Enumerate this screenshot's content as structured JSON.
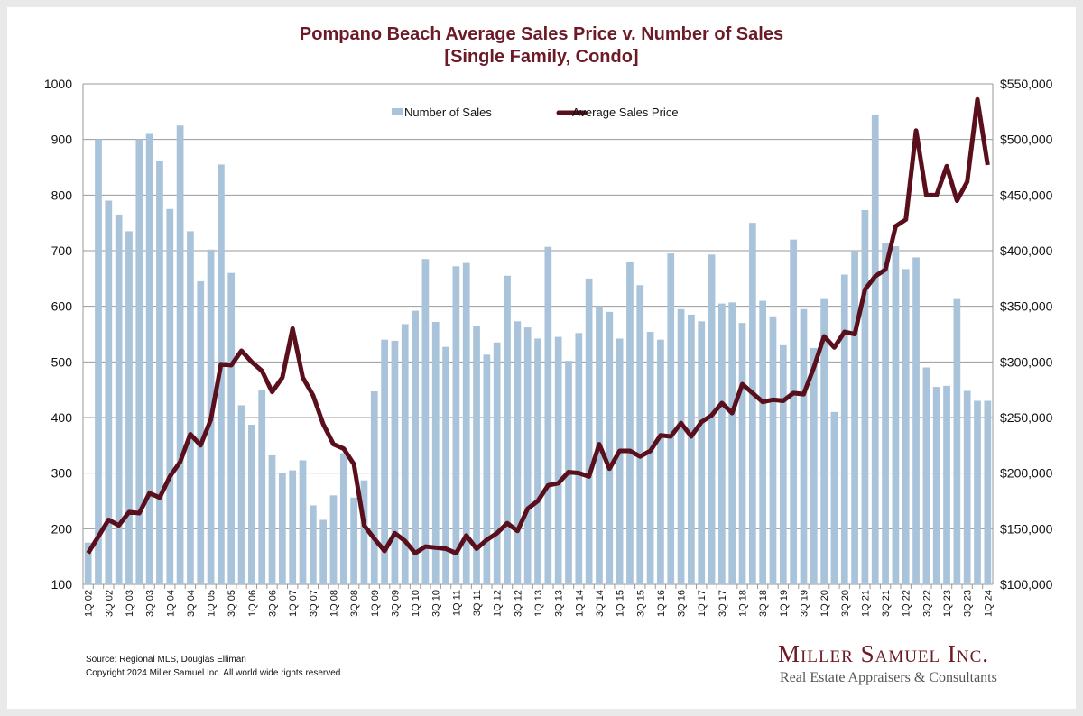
{
  "chart_data": {
    "type": "bar+line",
    "title_line1": "Pompano Beach Average Sales Price v. Number of Sales",
    "title_line2": "[Single Family, Condo]",
    "left_axis": {
      "ylim": [
        100,
        1000
      ],
      "ticks": [
        "100",
        "200",
        "300",
        "400",
        "500",
        "600",
        "700",
        "800",
        "900",
        "1000"
      ]
    },
    "right_axis": {
      "ylim": [
        100000,
        550000
      ],
      "ticks": [
        "$100,000",
        "$150,000",
        "$200,000",
        "$250,000",
        "$300,000",
        "$350,000",
        "$400,000",
        "$450,000",
        "$500,000",
        "$550,000"
      ]
    },
    "grid": true,
    "legend": {
      "placement": "top-center",
      "entries": [
        "Number of Sales",
        "Average Sales Price"
      ]
    },
    "start_year": 2002,
    "series": [
      {
        "name": "Number of Sales",
        "type": "bar",
        "axis": "left",
        "color": "#a9c4da",
        "values": [
          175,
          900,
          790,
          765,
          735,
          900,
          910,
          862,
          775,
          925,
          735,
          645,
          702,
          855,
          660,
          422,
          387,
          450,
          332,
          300,
          305,
          323,
          242,
          216,
          260,
          336,
          256,
          287,
          447,
          540,
          538,
          568,
          592,
          685,
          572,
          527,
          672,
          678,
          565,
          513,
          535,
          655,
          573,
          562,
          542,
          707,
          545,
          502,
          552,
          650,
          600,
          590,
          542,
          680,
          638,
          554,
          540,
          695,
          595,
          585,
          573,
          693,
          605,
          607,
          570,
          750,
          610,
          582,
          530,
          720,
          595,
          525,
          613,
          410,
          657,
          700,
          773,
          945,
          713,
          708,
          667,
          688,
          490,
          455,
          457,
          613,
          448,
          430,
          430
        ]
      },
      {
        "name": "Average Sales Price",
        "type": "line",
        "axis": "right",
        "color": "#5a0f1c",
        "values": [
          128000,
          143000,
          158000,
          153000,
          165000,
          164000,
          182000,
          178000,
          197000,
          210000,
          235000,
          225000,
          248000,
          298000,
          297000,
          310000,
          300000,
          292000,
          273000,
          286000,
          330000,
          286000,
          270000,
          244000,
          226000,
          222000,
          208000,
          153000,
          141000,
          130000,
          146000,
          139000,
          128000,
          134000,
          133000,
          132000,
          128000,
          144000,
          132000,
          140000,
          146000,
          155000,
          148000,
          168000,
          175000,
          189000,
          191000,
          201000,
          200000,
          197000,
          226000,
          204000,
          220000,
          220000,
          215000,
          220000,
          234000,
          233000,
          245000,
          233000,
          246000,
          252000,
          263000,
          254000,
          280000,
          272000,
          264000,
          266000,
          265000,
          272000,
          271000,
          295000,
          323000,
          313000,
          327000,
          325000,
          365000,
          377000,
          383000,
          422000,
          428000,
          508000,
          450000,
          450000,
          476000,
          445000,
          462000,
          536000,
          477000
        ]
      }
    ]
  },
  "footer": {
    "source": "Source: Regional MLS, Douglas Elliman",
    "copyright": "Copyright 2024 Miller Samuel Inc.  All world wide rights reserved."
  },
  "logo": {
    "name": "Miller Samuel Inc.",
    "tagline": "Real Estate Appraisers & Consultants"
  }
}
